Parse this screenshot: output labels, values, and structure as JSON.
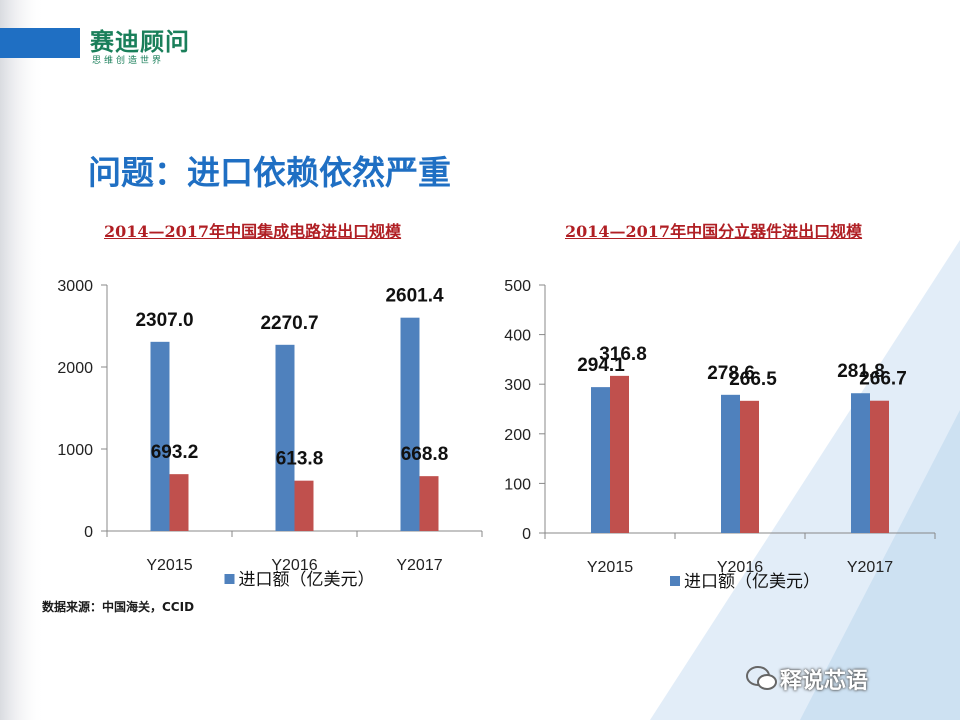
{
  "logo": {
    "name": "赛迪顾问",
    "tagline": "思维创造世界"
  },
  "page_title": "问题：进口依赖依然严重",
  "source": "数据来源：中国海关，CCID",
  "watermark": "释说芯语",
  "colors": {
    "import": "#4f81bd",
    "export": "#c0504d",
    "accent": "#1f6fc3",
    "title_red": "#b01f24"
  },
  "chart_data": [
    {
      "type": "bar",
      "title": "2014—2017年中国集成电路进出口规模",
      "categories": [
        "Y2015",
        "Y2016",
        "Y2017"
      ],
      "series": [
        {
          "name": "进口额（亿美元）",
          "values": [
            2307.0,
            2270.7,
            2601.4
          ]
        },
        {
          "values": [
            693.2,
            613.8,
            668.8
          ]
        }
      ],
      "value_labels": [
        [
          "2307.0",
          "2270.7",
          "2601.4"
        ],
        [
          "693.2",
          "613.8",
          "668.8"
        ]
      ],
      "ylim": [
        0,
        3000
      ],
      "yticks": [
        "0",
        "1000",
        "2000",
        "3000"
      ],
      "grid": false,
      "legend": "bottom"
    },
    {
      "type": "bar",
      "title": "2014—2017年中国分立器件进出口规模",
      "categories": [
        "Y2015",
        "Y2016",
        "Y2017"
      ],
      "series": [
        {
          "name": "进口额（亿美元）",
          "values": [
            294.1,
            278.6,
            281.8
          ]
        },
        {
          "values": [
            316.8,
            266.5,
            266.7
          ]
        }
      ],
      "value_labels": [
        [
          "294.1",
          "278.6",
          "281.8"
        ],
        [
          "316.8",
          "266.5",
          "266.7"
        ]
      ],
      "ylim": [
        0,
        500
      ],
      "yticks": [
        "0",
        "100",
        "200",
        "300",
        "400",
        "500"
      ],
      "grid": false,
      "legend": "bottom"
    }
  ]
}
